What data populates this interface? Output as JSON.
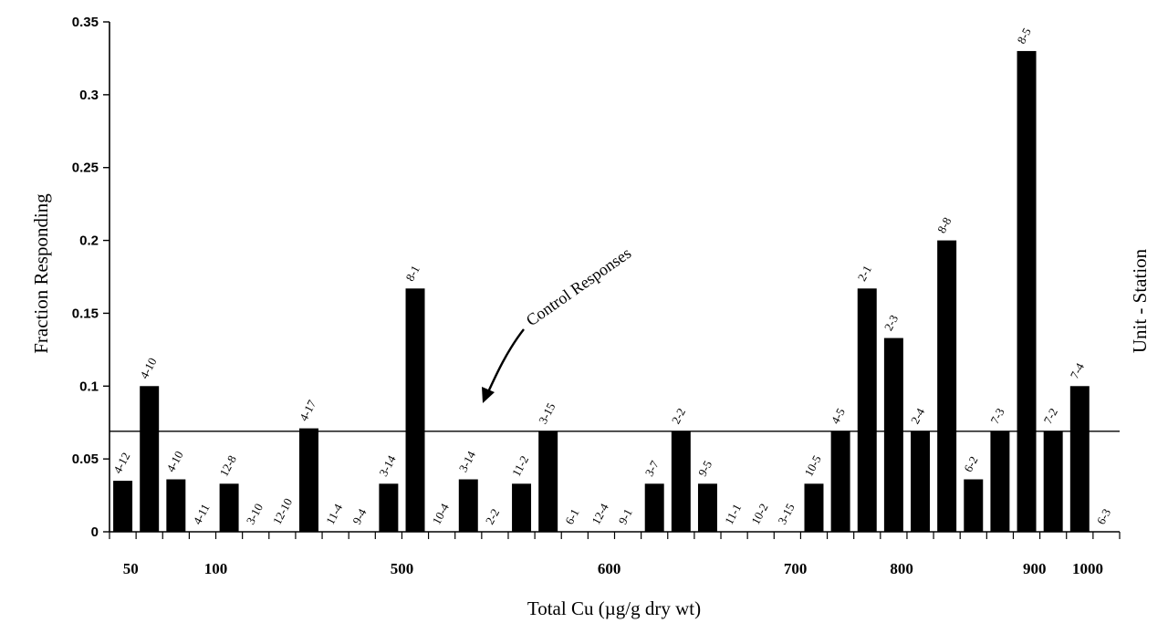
{
  "chart_data": {
    "type": "bar",
    "ylabel": "Fraction Responding",
    "xlabel": "Total Cu (µg/g dry wt)",
    "right_label": "Unit - Station",
    "ylim": [
      0,
      0.35
    ],
    "y_ticks": [
      "0",
      "0.05",
      "0.1",
      "0.15",
      "0.2",
      "0.25",
      "0.3",
      "0.35"
    ],
    "x_tick_labels": [
      "50",
      "100",
      "500",
      "600",
      "700",
      "800",
      "900",
      "1000"
    ],
    "control_response": 0.069,
    "annotation": "Control Responses",
    "slot_count": 38,
    "bars": [
      {
        "label": "4-12",
        "value": 0.035
      },
      {
        "label": "4-10",
        "value": 0.1
      },
      {
        "label": "4-10",
        "value": 0.036
      },
      {
        "label": "4-11",
        "value": 0
      },
      {
        "label": "12-8",
        "value": 0.033
      },
      {
        "label": "3-10",
        "value": 0
      },
      {
        "label": "12-10",
        "value": 0
      },
      {
        "label": "4-17",
        "value": 0.071
      },
      {
        "label": "11-4",
        "value": 0
      },
      {
        "label": "9-4",
        "value": 0
      },
      {
        "label": "3-14",
        "value": 0.033
      },
      {
        "label": "8-1",
        "value": 0.167
      },
      {
        "label": "10-4",
        "value": 0
      },
      {
        "label": "3-14",
        "value": 0.036
      },
      {
        "label": "2-2",
        "value": 0
      },
      {
        "label": "11-2",
        "value": 0.033
      },
      {
        "label": "3-15",
        "value": 0.069
      },
      {
        "label": "6-1",
        "value": 0
      },
      {
        "label": "12-4",
        "value": 0
      },
      {
        "label": "9-1",
        "value": 0
      },
      {
        "label": "3-7",
        "value": 0.033
      },
      {
        "label": "2-2",
        "value": 0.069
      },
      {
        "label": "9-5",
        "value": 0.033
      },
      {
        "label": "11-1",
        "value": 0
      },
      {
        "label": "10-2",
        "value": 0
      },
      {
        "label": "3-15",
        "value": 0
      },
      {
        "label": "10-5",
        "value": 0.033
      },
      {
        "label": "4-5",
        "value": 0.069
      },
      {
        "label": "2-1",
        "value": 0.167
      },
      {
        "label": "2-3",
        "value": 0.133
      },
      {
        "label": "2-4",
        "value": 0.069
      },
      {
        "label": "8-8",
        "value": 0.2
      },
      {
        "label": "6-2",
        "value": 0.036
      },
      {
        "label": "7-3",
        "value": 0.069
      },
      {
        "label": "8-5",
        "value": 0.33
      },
      {
        "label": "7-2",
        "value": 0.069
      },
      {
        "label": "7-4",
        "value": 0.1
      },
      {
        "label": "6-3",
        "value": 0
      }
    ]
  }
}
